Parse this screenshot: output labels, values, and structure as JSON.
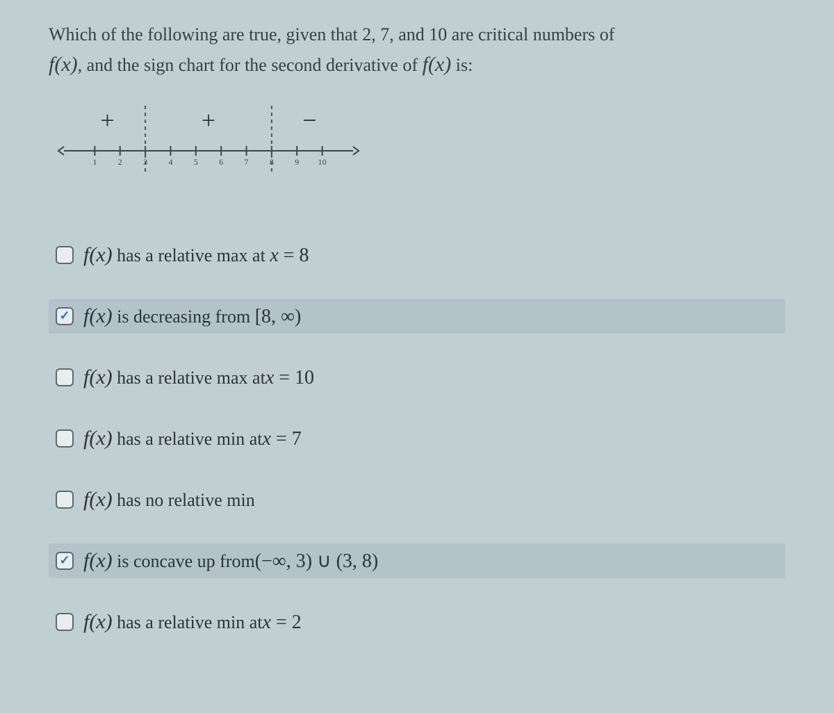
{
  "question": {
    "line1_pre": "Which of the following are true, given that 2, 7, and 10 are critical numbers of",
    "fx": "f(x)",
    "line2_mid": ", and the sign chart for the second derivative of ",
    "line2_post": " is:"
  },
  "sign_chart": {
    "ticks": [
      1,
      2,
      3,
      4,
      5,
      6,
      7,
      8,
      9,
      10
    ],
    "breaks": [
      3,
      8
    ],
    "regions": [
      {
        "from": 0,
        "to": 3,
        "sign": "+"
      },
      {
        "from": 3,
        "to": 8,
        "sign": "+"
      },
      {
        "from": 8,
        "to": 11,
        "sign": "−"
      }
    ],
    "axis_color": "#3a4448",
    "tick_color": "#3a4448",
    "break_color": "#4a5558",
    "sign_color": "#2a3438",
    "sign_fontsize": 36,
    "tick_fontsize": 12
  },
  "options": [
    {
      "checked": false,
      "selected": false,
      "fx": "f(x)",
      "mid": " has a relative max at ",
      "tail": "x = 8"
    },
    {
      "checked": true,
      "selected": true,
      "fx": "f(x)",
      "mid": " is decreasing from ",
      "tail": "[8, ∞)"
    },
    {
      "checked": false,
      "selected": false,
      "fx": "f(x)",
      "mid": " has a relative max at",
      "tail": "x = 10"
    },
    {
      "checked": false,
      "selected": false,
      "fx": "f(x)",
      "mid": " has a relative min at",
      "tail": "x = 7"
    },
    {
      "checked": false,
      "selected": false,
      "fx": "f(x)",
      "mid": " has no relative min",
      "tail": ""
    },
    {
      "checked": true,
      "selected": true,
      "fx": "f(x)",
      "mid": " is concave up from",
      "tail": "(−∞, 3) ∪ (3, 8)"
    },
    {
      "checked": false,
      "selected": false,
      "fx": "f(x)",
      "mid": " has a relative min at",
      "tail": "x = 2"
    }
  ]
}
